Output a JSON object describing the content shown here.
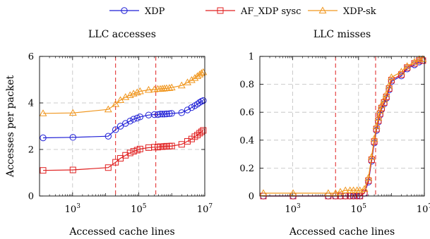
{
  "colors": {
    "xdp": "#1f1fd6",
    "af_xdp": "#e01f1f",
    "xdp_sk": "#f0961e",
    "grid": "#bdbdbd",
    "marker_line": "#e02020"
  },
  "legend": [
    {
      "key": "xdp",
      "name": "XDP",
      "marker": "circle"
    },
    {
      "key": "af_xdp",
      "name": "AF_XDP sysc",
      "marker": "square"
    },
    {
      "key": "xdp_sk",
      "name": "XDP-sk",
      "marker": "triangle"
    }
  ],
  "chart_data": [
    {
      "type": "line",
      "title": "LLC accesses",
      "xlabel": "Accessed cache lines",
      "ylabel": "Accesses per packet",
      "xscale": "log",
      "xlim": [
        100,
        10000000
      ],
      "ylim": [
        0,
        6
      ],
      "xticks": [
        {
          "value": 1000,
          "base": "10",
          "exp": "3"
        },
        {
          "value": 100000,
          "base": "10",
          "exp": "5"
        },
        {
          "value": 10000000,
          "base": "10",
          "exp": "7"
        }
      ],
      "yticks": [
        {
          "value": 0,
          "label": "0"
        },
        {
          "value": 2,
          "label": "2"
        },
        {
          "value": 4,
          "label": "4"
        },
        {
          "value": 6,
          "label": "6"
        }
      ],
      "grid": true,
      "vlines": [
        20000,
        330000
      ],
      "x": [
        128,
        1024,
        12000,
        20000,
        28000,
        40000,
        55000,
        70000,
        90000,
        110000,
        200000,
        300000,
        380000,
        450000,
        520000,
        600000,
        700000,
        850000,
        1000000,
        2000000,
        3000000,
        4000000,
        5000000,
        6000000,
        7000000,
        8000000,
        9000000
      ],
      "series": [
        {
          "key": "xdp",
          "name": "XDP",
          "values": [
            2.5,
            2.52,
            2.57,
            2.85,
            3.0,
            3.12,
            3.22,
            3.3,
            3.35,
            3.4,
            3.48,
            3.5,
            3.5,
            3.52,
            3.52,
            3.52,
            3.53,
            3.54,
            3.55,
            3.58,
            3.7,
            3.8,
            3.88,
            3.95,
            4.02,
            4.07,
            4.1
          ]
        },
        {
          "key": "af_xdp",
          "name": "AF_XDP sysc",
          "values": [
            1.1,
            1.12,
            1.22,
            1.45,
            1.62,
            1.75,
            1.85,
            1.92,
            1.97,
            2.02,
            2.08,
            2.1,
            2.1,
            2.12,
            2.12,
            2.13,
            2.14,
            2.14,
            2.15,
            2.22,
            2.35,
            2.45,
            2.55,
            2.62,
            2.7,
            2.76,
            2.82
          ]
        },
        {
          "key": "xdp_sk",
          "name": "XDP-sk",
          "values": [
            3.55,
            3.57,
            3.72,
            3.95,
            4.12,
            4.25,
            4.33,
            4.4,
            4.45,
            4.5,
            4.56,
            4.58,
            4.6,
            4.6,
            4.61,
            4.62,
            4.63,
            4.64,
            4.66,
            4.75,
            4.88,
            4.98,
            5.07,
            5.15,
            5.22,
            5.28,
            5.32
          ]
        }
      ]
    },
    {
      "type": "line",
      "title": "LLC misses",
      "xlabel": "Accessed cache lines",
      "ylabel": "",
      "xscale": "log",
      "xlim": [
        100,
        10000000
      ],
      "ylim": [
        0,
        1
      ],
      "xticks": [
        {
          "value": 1000,
          "base": "10",
          "exp": "3"
        },
        {
          "value": 100000,
          "base": "10",
          "exp": "5"
        },
        {
          "value": 10000000,
          "base": "10",
          "exp": "7"
        }
      ],
      "yticks": [
        {
          "value": 0,
          "label": "0"
        },
        {
          "value": 0.2,
          "label": "0.2"
        },
        {
          "value": 0.4,
          "label": "0.4"
        },
        {
          "value": 0.6,
          "label": "0.6"
        },
        {
          "value": 0.8,
          "label": "0.8"
        },
        {
          "value": 1,
          "label": "1"
        }
      ],
      "grid": true,
      "vlines": [
        20000,
        330000
      ],
      "x": [
        128,
        1024,
        12000,
        20000,
        28000,
        40000,
        55000,
        70000,
        90000,
        110000,
        150000,
        200000,
        250000,
        300000,
        350000,
        400000,
        450000,
        500000,
        600000,
        700000,
        850000,
        1000000,
        2000000,
        3000000,
        5000000,
        7000000,
        9000000
      ],
      "series": [
        {
          "key": "xdp",
          "name": "XDP",
          "values": [
            0.0,
            0.0,
            0.0,
            0.0,
            0.0,
            0.0,
            0.0,
            0.0,
            0.0,
            0.0,
            0.02,
            0.1,
            0.25,
            0.38,
            0.47,
            0.53,
            0.58,
            0.62,
            0.66,
            0.7,
            0.76,
            0.82,
            0.86,
            0.91,
            0.94,
            0.96,
            0.97
          ]
        },
        {
          "key": "af_xdp",
          "name": "AF_XDP sysc",
          "values": [
            0.0,
            0.0,
            0.0,
            0.0,
            0.0,
            0.0,
            0.0,
            0.0,
            0.0,
            0.0,
            0.02,
            0.11,
            0.26,
            0.39,
            0.48,
            0.54,
            0.59,
            0.63,
            0.67,
            0.71,
            0.77,
            0.83,
            0.87,
            0.92,
            0.95,
            0.97,
            0.97
          ]
        },
        {
          "key": "xdp_sk",
          "name": "XDP-sk",
          "values": [
            0.02,
            0.02,
            0.02,
            0.02,
            0.03,
            0.04,
            0.04,
            0.04,
            0.04,
            0.04,
            0.05,
            0.13,
            0.28,
            0.41,
            0.5,
            0.56,
            0.61,
            0.65,
            0.69,
            0.73,
            0.79,
            0.85,
            0.89,
            0.93,
            0.96,
            0.98,
            0.98
          ]
        }
      ]
    }
  ]
}
